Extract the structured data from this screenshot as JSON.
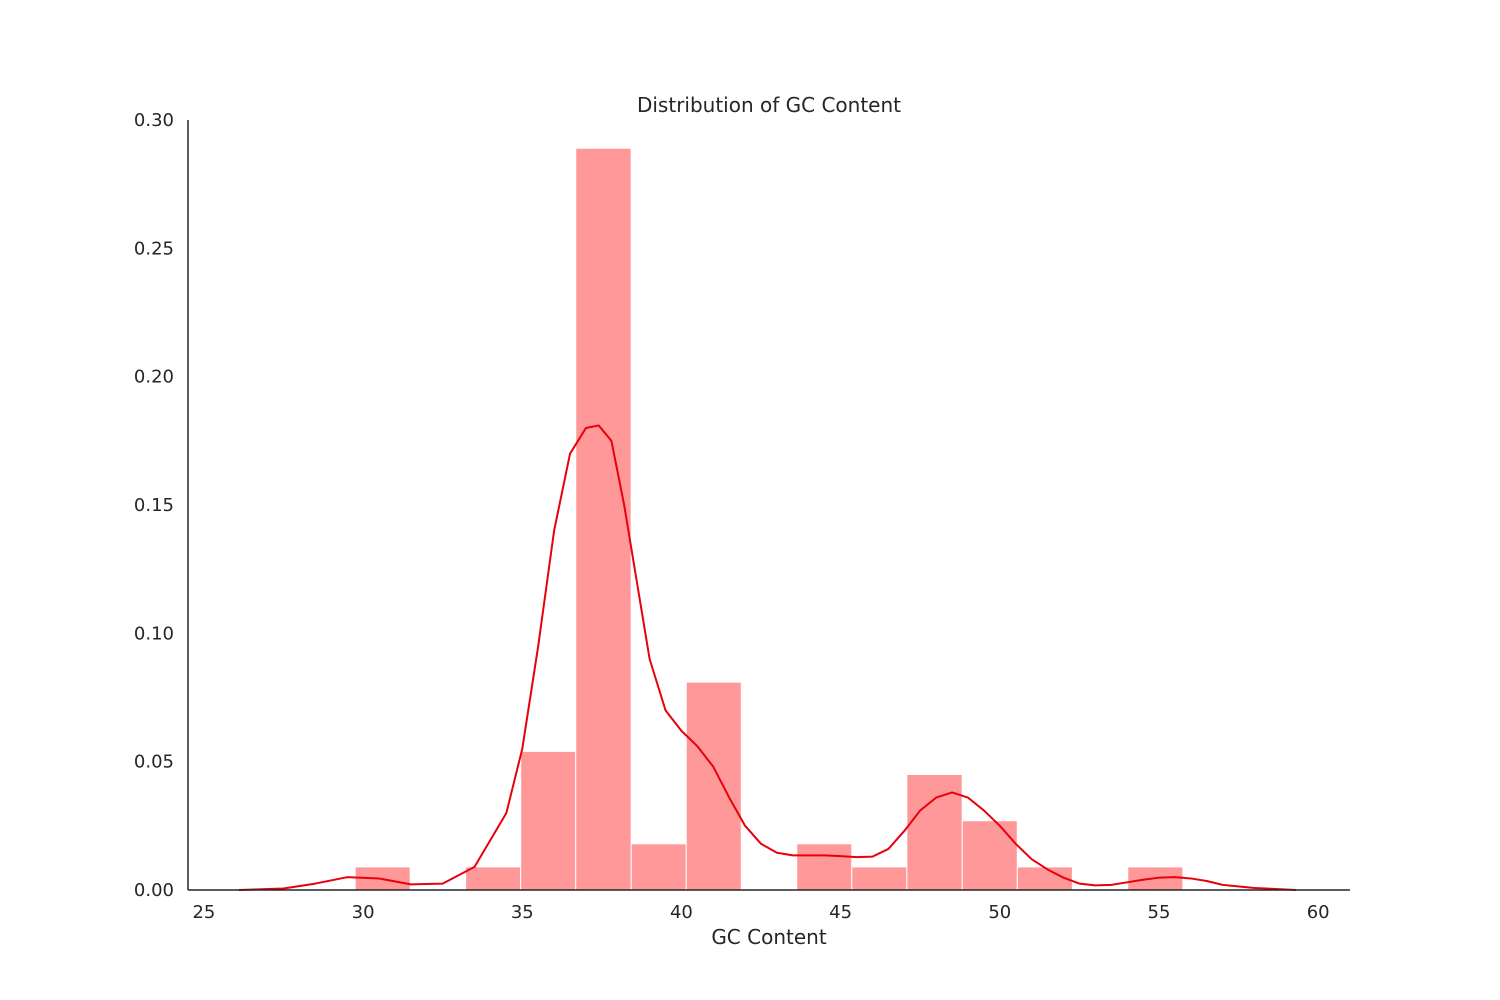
{
  "chart_data": {
    "type": "bar",
    "subtype": "histogram-with-kde",
    "title": "Distribution of GC Content",
    "xlabel": "GC Content",
    "ylabel": "",
    "xlim": [
      24.5,
      61
    ],
    "ylim": [
      0,
      0.3
    ],
    "x_ticks": [
      25,
      30,
      35,
      40,
      45,
      50,
      55,
      60
    ],
    "y_ticks": [
      0.0,
      0.05,
      0.1,
      0.15,
      0.2,
      0.25,
      0.3
    ],
    "x_tick_labels": [
      "25",
      "30",
      "35",
      "40",
      "45",
      "50",
      "55",
      "60"
    ],
    "y_tick_labels": [
      "0.00",
      "0.05",
      "0.10",
      "0.15",
      "0.20",
      "0.25",
      "0.30"
    ],
    "grid": false,
    "colors": {
      "bars": "#ff9999",
      "kde": "#e8000b",
      "axes": "#262626"
    },
    "bins": [
      {
        "start": 29.75,
        "end": 31.48,
        "value": 0.009
      },
      {
        "start": 31.48,
        "end": 33.22,
        "value": 0.0
      },
      {
        "start": 33.22,
        "end": 34.95,
        "value": 0.009
      },
      {
        "start": 34.95,
        "end": 36.68,
        "value": 0.054
      },
      {
        "start": 36.68,
        "end": 38.42,
        "value": 0.289
      },
      {
        "start": 38.42,
        "end": 40.15,
        "value": 0.018
      },
      {
        "start": 40.15,
        "end": 41.88,
        "value": 0.081
      },
      {
        "start": 41.88,
        "end": 43.62,
        "value": 0.0
      },
      {
        "start": 43.62,
        "end": 45.35,
        "value": 0.018
      },
      {
        "start": 45.35,
        "end": 47.08,
        "value": 0.009
      },
      {
        "start": 47.08,
        "end": 48.82,
        "value": 0.045
      },
      {
        "start": 48.82,
        "end": 50.55,
        "value": 0.027
      },
      {
        "start": 50.55,
        "end": 52.28,
        "value": 0.009
      },
      {
        "start": 52.28,
        "end": 54.02,
        "value": 0.0
      },
      {
        "start": 54.02,
        "end": 55.75,
        "value": 0.009
      }
    ],
    "kde": {
      "x": [
        26.1,
        27.5,
        28.5,
        29.5,
        30.5,
        31.5,
        32.5,
        33.5,
        34.5,
        35.0,
        35.5,
        36.0,
        36.5,
        37.0,
        37.4,
        37.8,
        38.2,
        38.6,
        39.0,
        39.5,
        40.0,
        40.5,
        41.0,
        41.5,
        42.0,
        42.5,
        43.0,
        43.5,
        44.0,
        44.5,
        45.0,
        45.5,
        46.0,
        46.5,
        47.0,
        47.5,
        48.0,
        48.5,
        49.0,
        49.5,
        50.0,
        50.5,
        51.0,
        51.5,
        52.0,
        52.5,
        53.0,
        53.5,
        54.0,
        54.5,
        55.0,
        55.5,
        56.0,
        56.5,
        57.0,
        58.0,
        59.3
      ],
      "y": [
        0.0,
        0.0006,
        0.0025,
        0.005,
        0.0045,
        0.0022,
        0.0025,
        0.009,
        0.03,
        0.055,
        0.095,
        0.14,
        0.17,
        0.18,
        0.181,
        0.175,
        0.15,
        0.12,
        0.09,
        0.07,
        0.062,
        0.056,
        0.048,
        0.036,
        0.025,
        0.018,
        0.0145,
        0.0135,
        0.0135,
        0.0135,
        0.0132,
        0.0128,
        0.013,
        0.016,
        0.023,
        0.031,
        0.036,
        0.038,
        0.036,
        0.031,
        0.025,
        0.018,
        0.012,
        0.008,
        0.0048,
        0.0025,
        0.0018,
        0.002,
        0.003,
        0.004,
        0.0048,
        0.005,
        0.0045,
        0.0035,
        0.002,
        0.0008,
        0.0
      ]
    }
  }
}
